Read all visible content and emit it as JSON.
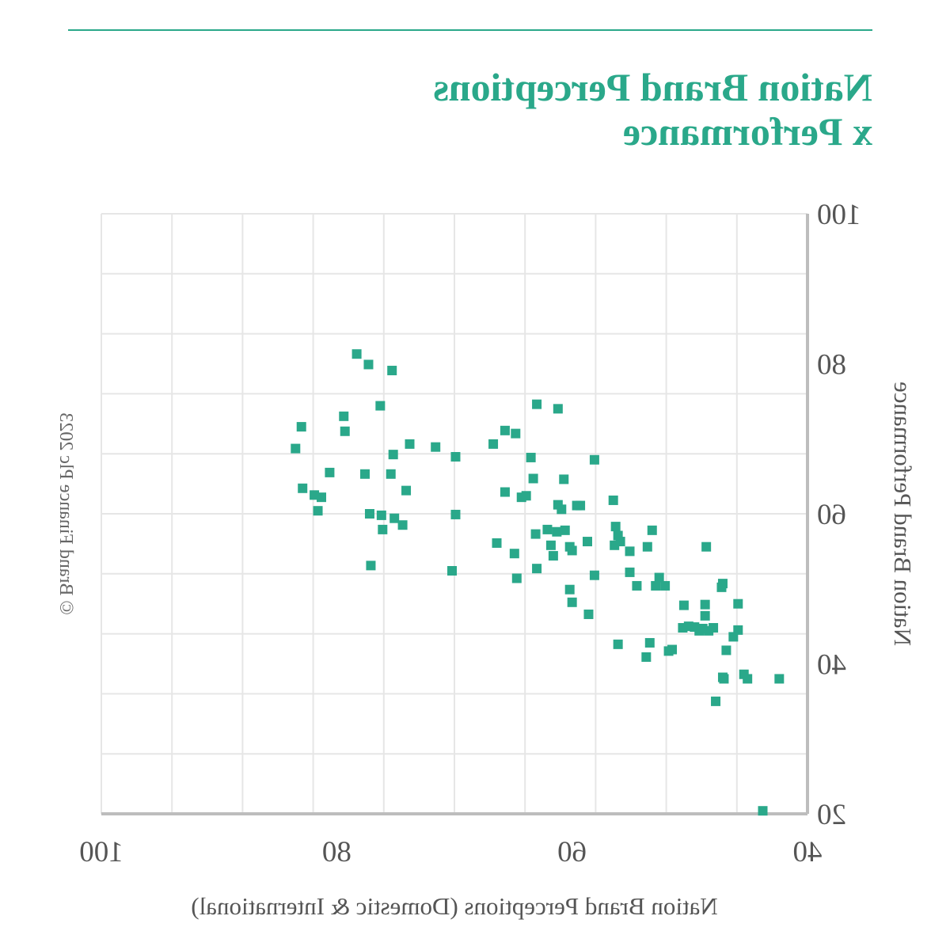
{
  "title_lines": [
    "Nation Brand Perceptions",
    "x Performance"
  ],
  "copyright": "© Brand Finance Plc 2023",
  "colors": {
    "accent": "#2aa88a",
    "grid": "#e6e6e6",
    "axis": "#bdbdbd",
    "text": "#555555"
  },
  "chart_data": {
    "type": "scatter",
    "title": "Nation Brand Perceptions x Performance",
    "xlabel": "Nation Brand Perceptions (Domestic & International)",
    "ylabel": "Nation Brand Performance",
    "xlim": [
      40,
      100
    ],
    "ylim": [
      20,
      100
    ],
    "x_ticks": [
      40,
      60,
      80,
      100
    ],
    "y_ticks": [
      20,
      40,
      60,
      80,
      100
    ],
    "x_gridlines": [
      40,
      46,
      52,
      58,
      64,
      70,
      76,
      82,
      88,
      94,
      100
    ],
    "y_gridlines": [
      20,
      28,
      36,
      44,
      52,
      60,
      68,
      76,
      84,
      92,
      100
    ],
    "x_reversed": true,
    "grid": true,
    "marker": "square",
    "series": [
      {
        "points": [
          [
            83.5,
            68.7
          ],
          [
            83.0,
            71.6
          ],
          [
            82.9,
            63.4
          ],
          [
            81.9,
            62.5
          ],
          [
            81.6,
            60.4
          ],
          [
            81.3,
            62.2
          ],
          [
            80.6,
            65.5
          ],
          [
            79.4,
            73.0
          ],
          [
            79.3,
            71.0
          ],
          [
            78.3,
            81.3
          ],
          [
            77.3,
            79.9
          ],
          [
            77.6,
            65.3
          ],
          [
            77.2,
            60.0
          ],
          [
            77.1,
            53.1
          ],
          [
            76.3,
            74.4
          ],
          [
            76.2,
            59.8
          ],
          [
            76.1,
            57.9
          ],
          [
            75.3,
            79.1
          ],
          [
            75.4,
            65.3
          ],
          [
            75.2,
            67.9
          ],
          [
            75.1,
            59.4
          ],
          [
            74.4,
            58.5
          ],
          [
            74.1,
            63.1
          ],
          [
            73.8,
            69.3
          ],
          [
            71.6,
            68.9
          ],
          [
            70.2,
            52.4
          ],
          [
            69.9,
            67.6
          ],
          [
            69.9,
            59.9
          ],
          [
            66.7,
            69.3
          ],
          [
            66.4,
            56.1
          ],
          [
            65.7,
            62.9
          ],
          [
            65.7,
            71.1
          ],
          [
            64.9,
            54.7
          ],
          [
            64.7,
            51.4
          ],
          [
            64.8,
            70.7
          ],
          [
            64.3,
            62.2
          ],
          [
            63.9,
            62.4
          ],
          [
            63.5,
            67.5
          ],
          [
            63.3,
            64.7
          ],
          [
            63.1,
            57.3
          ],
          [
            63.0,
            74.6
          ],
          [
            63.0,
            52.7
          ],
          [
            62.1,
            57.9
          ],
          [
            61.8,
            55.8
          ],
          [
            61.6,
            54.4
          ],
          [
            61.3,
            57.6
          ],
          [
            61.2,
            61.2
          ],
          [
            61.2,
            74.0
          ],
          [
            60.9,
            60.6
          ],
          [
            60.7,
            64.6
          ],
          [
            60.6,
            57.8
          ],
          [
            60.2,
            55.6
          ],
          [
            60.2,
            49.9
          ],
          [
            60.0,
            55.1
          ],
          [
            60.0,
            48.2
          ],
          [
            59.6,
            61.1
          ],
          [
            59.3,
            61.1
          ],
          [
            58.7,
            56.3
          ],
          [
            58.6,
            46.6
          ],
          [
            58.1,
            51.8
          ],
          [
            58.1,
            67.2
          ],
          [
            56.5,
            61.8
          ],
          [
            56.4,
            55.8
          ],
          [
            56.3,
            58.3
          ],
          [
            56.1,
            57.1
          ],
          [
            55.9,
            56.3
          ],
          [
            56.1,
            42.6
          ],
          [
            55.1,
            55.0
          ],
          [
            55.1,
            52.2
          ],
          [
            54.5,
            50.4
          ],
          [
            53.6,
            55.6
          ],
          [
            53.7,
            40.9
          ],
          [
            53.4,
            42.8
          ],
          [
            53.2,
            57.8
          ],
          [
            52.9,
            50.4
          ],
          [
            52.6,
            51.5
          ],
          [
            52.1,
            50.4
          ],
          [
            51.8,
            41.7
          ],
          [
            51.5,
            41.9
          ],
          [
            50.6,
            44.8
          ],
          [
            50.5,
            47.8
          ],
          [
            50.1,
            45.0
          ],
          [
            49.6,
            44.9
          ],
          [
            49.2,
            44.4
          ],
          [
            48.9,
            44.7
          ],
          [
            48.7,
            47.9
          ],
          [
            48.7,
            46.4
          ],
          [
            48.6,
            55.6
          ],
          [
            48.4,
            44.4
          ],
          [
            48.0,
            44.8
          ],
          [
            47.8,
            35.0
          ],
          [
            47.2,
            38.2
          ],
          [
            47.1,
            38.0
          ],
          [
            47.3,
            50.2
          ],
          [
            47.2,
            50.7
          ],
          [
            46.9,
            41.8
          ],
          [
            46.3,
            43.6
          ],
          [
            45.9,
            44.5
          ],
          [
            45.9,
            48.0
          ],
          [
            45.4,
            38.6
          ],
          [
            45.1,
            38.0
          ],
          [
            43.8,
            20.4
          ],
          [
            42.4,
            38.0
          ]
        ]
      }
    ]
  }
}
